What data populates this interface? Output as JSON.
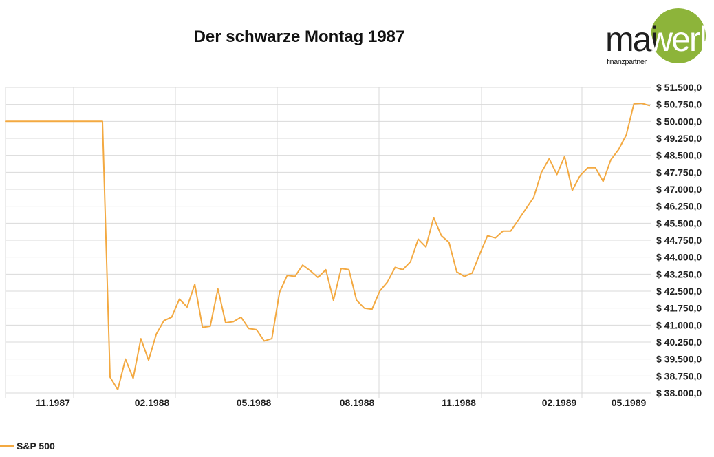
{
  "chart_data": {
    "type": "line",
    "title": "Der schwarze Montag 1987",
    "xlabel": "",
    "ylabel": "",
    "x_tick_labels": [
      "11.1987",
      "02.1988",
      "05.1988",
      "08.1988",
      "11.1988",
      "02.1989",
      "05.1989"
    ],
    "y_tick_labels": [
      "$ 51.500,0",
      "$ 50.750,0",
      "$ 50.000,0",
      "$ 49.250,0",
      "$ 48.500,0",
      "$ 47.750,0",
      "$ 47.000,0",
      "$ 46.250,0",
      "$ 45.500,0",
      "$ 44.750,0",
      "$ 44.000,0",
      "$ 43.250,0",
      "$ 42.500,0",
      "$ 41.750,0",
      "$ 41.000,0",
      "$ 40.250,0",
      "$ 39.500,0",
      "$ 38.750,0",
      "$ 38.000,0"
    ],
    "ylim": [
      38000,
      51500
    ],
    "y_axis_position": "right",
    "grid": true,
    "legend_position": "bottom-left",
    "series": [
      {
        "name": "S&P 500",
        "color": "#f3a941",
        "values": [
          50000,
          50000,
          50000,
          50000,
          50000,
          50000,
          50000,
          50000,
          50000,
          50000,
          50000,
          50000,
          50000,
          50000,
          50000,
          38700,
          38150,
          39500,
          38650,
          40400,
          39450,
          40600,
          41200,
          41350,
          42150,
          41800,
          42800,
          40900,
          40950,
          42600,
          41100,
          41150,
          41350,
          40850,
          40800,
          40300,
          40400,
          42450,
          43200,
          43150,
          43650,
          43400,
          43100,
          43450,
          42100,
          43500,
          43450,
          42100,
          41750,
          41700,
          42500,
          42900,
          43550,
          43450,
          43800,
          44800,
          44450,
          45750,
          44950,
          44650,
          43350,
          43150,
          43300,
          44150,
          44950,
          44850,
          45150,
          45150,
          45650,
          46150,
          46650,
          47750,
          48350,
          47650,
          48450,
          46950,
          47600,
          47950,
          47950,
          47350,
          48300,
          48750,
          49400,
          50780,
          50800,
          50700
        ]
      }
    ]
  },
  "logo": {
    "part1": "mai",
    "part2": "werk",
    "subline": "finanzpartner"
  }
}
